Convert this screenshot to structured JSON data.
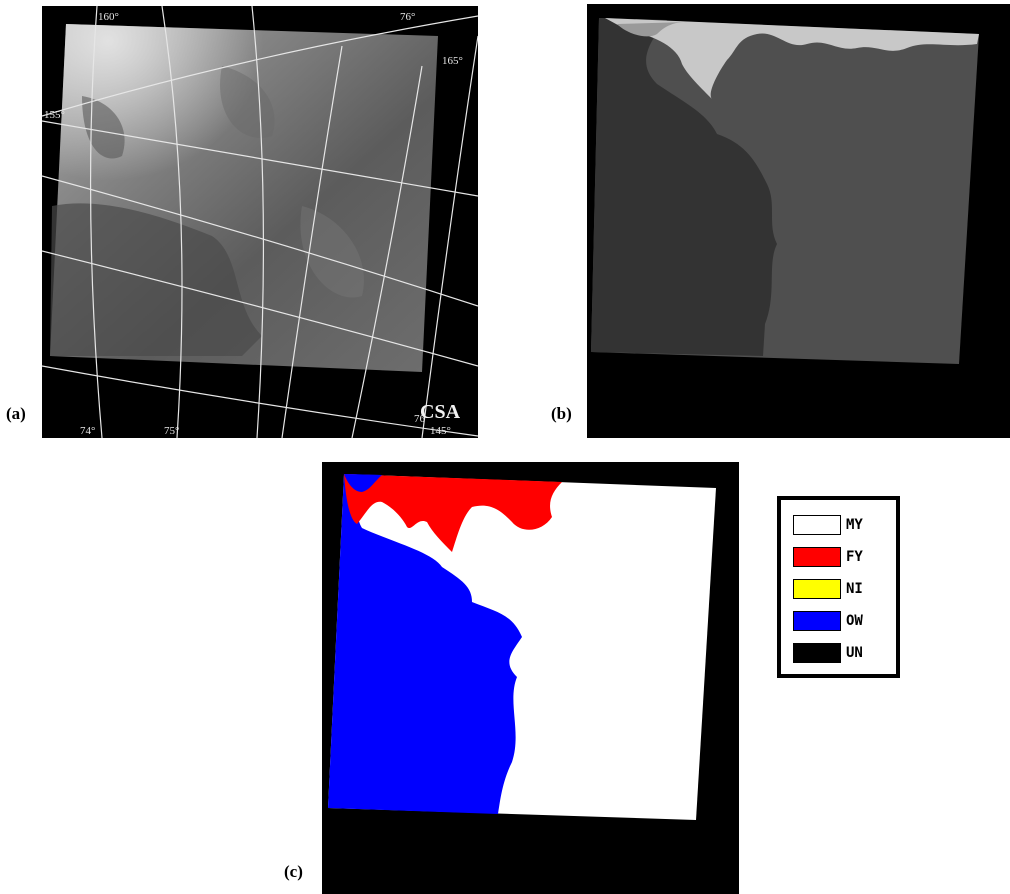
{
  "panels": {
    "a": {
      "label": "(a)",
      "watermark": "CSA",
      "grid_labels": [
        "160°",
        "76°",
        "165°",
        "155°",
        "74°",
        "75°",
        "145°",
        "76"
      ]
    },
    "b": {
      "label": "(b)"
    },
    "c": {
      "label": "(c)"
    }
  },
  "legend": {
    "items": [
      {
        "label": "MY",
        "color": "#ffffff"
      },
      {
        "label": "FY",
        "color": "#ff0000"
      },
      {
        "label": "NI",
        "color": "#ffff00"
      },
      {
        "label": "OW",
        "color": "#0000ff"
      },
      {
        "label": "UN",
        "color": "#000000"
      }
    ]
  },
  "colors": {
    "background_dark": "#000000",
    "class_b_dark": "#333333",
    "class_b_mid": "#4f4f4f",
    "class_b_light": "#c8c8c8"
  }
}
